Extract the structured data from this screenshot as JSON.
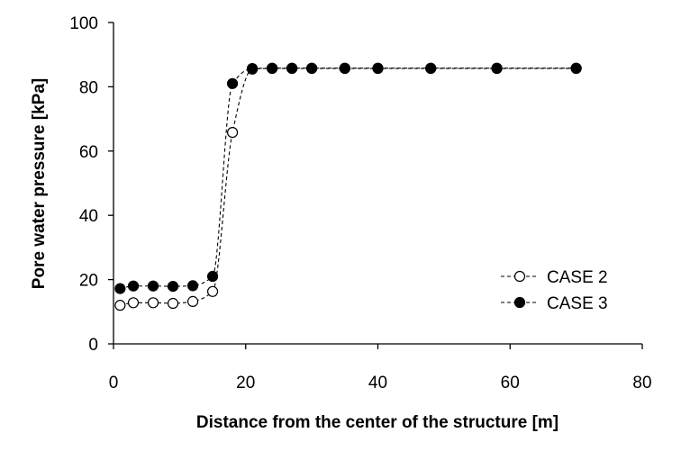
{
  "chart_data": {
    "type": "scatter",
    "title": "",
    "xlabel": "Distance from the center of the structure [m]",
    "ylabel": "Pore water pressure [kPa]",
    "xlim": [
      0,
      80
    ],
    "ylim": [
      0,
      100
    ],
    "xticks": [
      "0",
      "20",
      "40",
      "60",
      "80"
    ],
    "yticks": [
      "0",
      "20",
      "40",
      "60",
      "80",
      "100"
    ],
    "grid": false,
    "legend_position": "bottom-right",
    "series": [
      {
        "name": "CASE 2",
        "marker": "open-circle",
        "line": "dashed",
        "x": [
          1,
          3,
          6,
          9,
          12,
          15,
          18,
          21,
          24,
          27,
          30,
          35,
          40,
          48,
          58,
          70
        ],
        "y": [
          12,
          12.8,
          12.8,
          12.6,
          13.2,
          16.3,
          65.8,
          85.5,
          85.7,
          85.7,
          85.7,
          85.7,
          85.7,
          85.7,
          85.7,
          85.7
        ]
      },
      {
        "name": "CASE 3",
        "marker": "filled-circle",
        "line": "dashed",
        "x": [
          1,
          3,
          6,
          9,
          12,
          15,
          18,
          21,
          24,
          27,
          30,
          35,
          40,
          48,
          58,
          70
        ],
        "y": [
          17.2,
          18,
          18,
          17.9,
          18.1,
          21,
          81,
          85.7,
          85.8,
          85.8,
          85.8,
          85.8,
          85.8,
          85.8,
          85.8,
          85.8
        ]
      }
    ],
    "colors": {
      "axis": "#000000",
      "marker_fill": "#000000",
      "marker_open": "#ffffff"
    }
  }
}
